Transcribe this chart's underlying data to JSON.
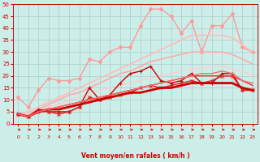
{
  "x": [
    0,
    1,
    2,
    3,
    4,
    5,
    6,
    7,
    8,
    9,
    10,
    11,
    12,
    13,
    14,
    15,
    16,
    17,
    18,
    19,
    20,
    21,
    22,
    23
  ],
  "background_color": "#cceee8",
  "grid_color": "#aacccc",
  "xlabel": "Vent moyen/en rafales ( km/h )",
  "xlabel_color": "#cc0000",
  "tick_color": "#cc0000",
  "lines": [
    {
      "y": [
        11,
        7,
        14,
        19,
        18,
        18,
        19,
        27,
        26,
        30,
        32,
        32,
        41,
        48,
        48,
        45,
        38,
        43,
        30,
        41,
        41,
        46,
        32,
        30
      ],
      "color": "#ff9999",
      "lw": 1.0,
      "marker": "o",
      "ms": 2.5
    },
    {
      "y": [
        4,
        5,
        7,
        9,
        11,
        13,
        15,
        17,
        19,
        21,
        23,
        25,
        27,
        29,
        31,
        33,
        35,
        37,
        37,
        37,
        37,
        36,
        33,
        30
      ],
      "color": "#ffbbbb",
      "lw": 1.2,
      "marker": null,
      "ms": 0
    },
    {
      "y": [
        3,
        4,
        6,
        8,
        10,
        12,
        13,
        15,
        17,
        19,
        21,
        22,
        24,
        26,
        27,
        28,
        29,
        30,
        30,
        30,
        30,
        29,
        27,
        25
      ],
      "color": "#ffaaaa",
      "lw": 1.2,
      "marker": null,
      "ms": 0
    },
    {
      "y": [
        3,
        4,
        5,
        7,
        8,
        10,
        11,
        12,
        14,
        15,
        16,
        17,
        18,
        19,
        20,
        21,
        22,
        23,
        23,
        24,
        24,
        23,
        22,
        20
      ],
      "color": "#ffcccc",
      "lw": 1.0,
      "marker": null,
      "ms": 0
    },
    {
      "y": [
        4,
        3,
        6,
        5,
        5,
        5,
        7,
        15,
        10,
        12,
        17,
        21,
        22,
        24,
        18,
        17,
        18,
        21,
        17,
        17,
        21,
        21,
        14,
        14
      ],
      "color": "#cc0000",
      "lw": 1.0,
      "marker": "+",
      "ms": 3.5
    },
    {
      "y": [
        4,
        3,
        5,
        5,
        4,
        5,
        7,
        11,
        10,
        11,
        12,
        13,
        15,
        16,
        15,
        16,
        17,
        18,
        17,
        18,
        20,
        20,
        14,
        14
      ],
      "color": "#dd2222",
      "lw": 1.0,
      "marker": "x",
      "ms": 3
    },
    {
      "y": [
        4,
        3,
        5,
        6,
        6,
        7,
        8,
        9,
        10,
        11,
        12,
        13,
        13,
        14,
        15,
        15,
        16,
        17,
        17,
        17,
        17,
        17,
        15,
        14
      ],
      "color": "#cc0000",
      "lw": 2.0,
      "marker": null,
      "ms": 0
    },
    {
      "y": [
        4,
        3,
        5,
        6,
        7,
        8,
        9,
        10,
        11,
        12,
        13,
        14,
        15,
        16,
        17,
        18,
        19,
        20,
        20,
        20,
        20,
        20,
        18,
        16
      ],
      "color": "#ee3333",
      "lw": 1.0,
      "marker": null,
      "ms": 0
    },
    {
      "y": [
        4,
        3,
        5,
        6,
        7,
        8,
        9,
        10,
        11,
        12,
        13,
        14,
        15,
        16,
        17,
        18,
        19,
        20,
        21,
        21,
        22,
        21,
        18,
        17
      ],
      "color": "#ff6666",
      "lw": 1.0,
      "marker": null,
      "ms": 0
    }
  ],
  "ylim": [
    0,
    50
  ],
  "yticks": [
    0,
    5,
    10,
    15,
    20,
    25,
    30,
    35,
    40,
    45,
    50
  ]
}
